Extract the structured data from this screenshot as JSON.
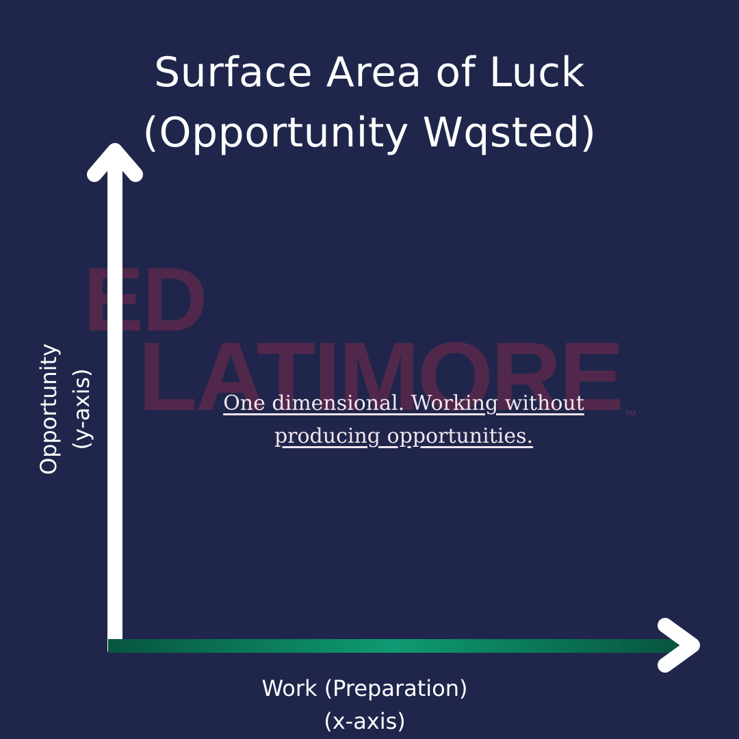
{
  "title": {
    "line1": "Surface Area of Luck",
    "line2": "(Opportunity Wqsted)"
  },
  "watermark": {
    "line1": "ED",
    "line2": "LATIMORE",
    "trademark": "™"
  },
  "annotation": "One dimensional. Working without producing opportunities.",
  "y_axis": {
    "label_line1": "Opportunity",
    "label_line2": "(y-axis)"
  },
  "x_axis": {
    "label_line1": "Work (Preparation)",
    "label_line2": "(x-axis)"
  },
  "colors": {
    "background": "#20264b",
    "axis": "#ffffff",
    "work_bar": "#0e9a72",
    "work_bar_dark": "#07553f",
    "watermark": "#5a2a4c"
  }
}
